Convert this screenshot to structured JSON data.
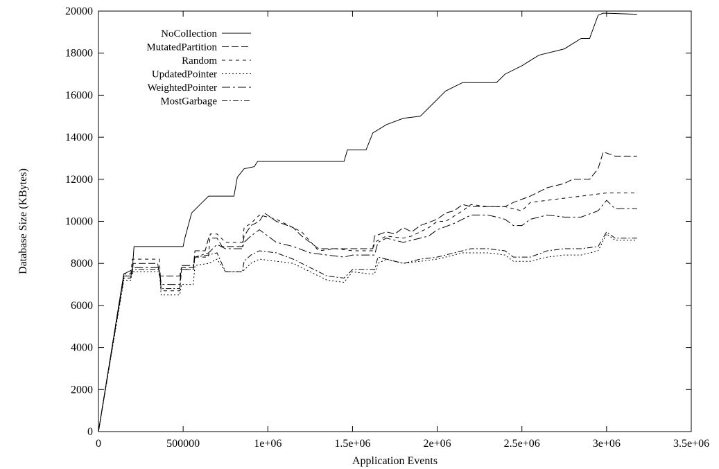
{
  "chart_data": {
    "type": "line",
    "title": "",
    "xlabel": "Application Events",
    "ylabel": "Database Size (KBytes)",
    "xlim": [
      0,
      3500000
    ],
    "ylim": [
      0,
      20000
    ],
    "xticks": [
      0,
      500000,
      1000000,
      1500000,
      2000000,
      2500000,
      3000000,
      3500000
    ],
    "xtick_labels": [
      "0",
      "500000",
      "1e+06",
      "1.5e+06",
      "2e+06",
      "2.5e+06",
      "3e+06",
      "3.5e+06"
    ],
    "yticks": [
      0,
      2000,
      4000,
      6000,
      8000,
      10000,
      12000,
      14000,
      16000,
      18000,
      20000
    ],
    "ytick_labels": [
      "0",
      "2000",
      "4000",
      "6000",
      "8000",
      "10000",
      "12000",
      "14000",
      "16000",
      "18000",
      "20000"
    ],
    "grid": false,
    "legend_position": "top-left",
    "series": [
      {
        "name": "NoCollection",
        "dash": "",
        "points": [
          [
            0,
            0
          ],
          [
            150000,
            7500
          ],
          [
            200000,
            7700
          ],
          [
            210000,
            8800
          ],
          [
            500000,
            8800
          ],
          [
            510000,
            9200
          ],
          [
            550000,
            10400
          ],
          [
            600000,
            10800
          ],
          [
            650000,
            11200
          ],
          [
            800000,
            11200
          ],
          [
            820000,
            12100
          ],
          [
            860000,
            12500
          ],
          [
            920000,
            12600
          ],
          [
            940000,
            12850
          ],
          [
            1000000,
            12850
          ],
          [
            1450000,
            12850
          ],
          [
            1470000,
            13400
          ],
          [
            1520000,
            13400
          ],
          [
            1580000,
            13400
          ],
          [
            1620000,
            14200
          ],
          [
            1700000,
            14600
          ],
          [
            1800000,
            14900
          ],
          [
            1900000,
            15000
          ],
          [
            1950000,
            15400
          ],
          [
            2000000,
            15800
          ],
          [
            2050000,
            16200
          ],
          [
            2150000,
            16600
          ],
          [
            2350000,
            16600
          ],
          [
            2400000,
            17000
          ],
          [
            2500000,
            17400
          ],
          [
            2600000,
            17900
          ],
          [
            2750000,
            18200
          ],
          [
            2850000,
            18700
          ],
          [
            2900000,
            18700
          ],
          [
            2950000,
            19800
          ],
          [
            2980000,
            19900
          ],
          [
            3180000,
            19850
          ]
        ]
      },
      {
        "name": "MutatedPartition",
        "dash": "10,4",
        "points": [
          [
            0,
            0
          ],
          [
            150000,
            7500
          ],
          [
            200000,
            7500
          ],
          [
            205000,
            8000
          ],
          [
            350000,
            8000
          ],
          [
            360000,
            7400
          ],
          [
            480000,
            7400
          ],
          [
            490000,
            7800
          ],
          [
            560000,
            7800
          ],
          [
            570000,
            8600
          ],
          [
            630000,
            8600
          ],
          [
            650000,
            9200
          ],
          [
            700000,
            9200
          ],
          [
            730000,
            8800
          ],
          [
            850000,
            8800
          ],
          [
            860000,
            9300
          ],
          [
            900000,
            9800
          ],
          [
            950000,
            10000
          ],
          [
            980000,
            10400
          ],
          [
            1050000,
            10000
          ],
          [
            1150000,
            9700
          ],
          [
            1200000,
            9300
          ],
          [
            1300000,
            8700
          ],
          [
            1400000,
            8700
          ],
          [
            1500000,
            8700
          ],
          [
            1620000,
            8700
          ],
          [
            1630000,
            9300
          ],
          [
            1700000,
            9500
          ],
          [
            1750000,
            9400
          ],
          [
            1800000,
            9700
          ],
          [
            1850000,
            9500
          ],
          [
            1900000,
            9800
          ],
          [
            2000000,
            10100
          ],
          [
            2050000,
            10400
          ],
          [
            2100000,
            10500
          ],
          [
            2150000,
            10800
          ],
          [
            2200000,
            10700
          ],
          [
            2300000,
            10700
          ],
          [
            2400000,
            10700
          ],
          [
            2450000,
            10900
          ],
          [
            2550000,
            11200
          ],
          [
            2650000,
            11600
          ],
          [
            2750000,
            11800
          ],
          [
            2800000,
            12000
          ],
          [
            2900000,
            12000
          ],
          [
            2950000,
            12500
          ],
          [
            2980000,
            13300
          ],
          [
            3050000,
            13100
          ],
          [
            3180000,
            13100
          ]
        ]
      },
      {
        "name": "Random",
        "dash": "5,5",
        "points": [
          [
            0,
            0
          ],
          [
            150000,
            7400
          ],
          [
            190000,
            7400
          ],
          [
            200000,
            8200
          ],
          [
            360000,
            8200
          ],
          [
            370000,
            6700
          ],
          [
            480000,
            6700
          ],
          [
            490000,
            7700
          ],
          [
            560000,
            7700
          ],
          [
            570000,
            8300
          ],
          [
            650000,
            8300
          ],
          [
            660000,
            9400
          ],
          [
            700000,
            9400
          ],
          [
            750000,
            9000
          ],
          [
            850000,
            9000
          ],
          [
            860000,
            9700
          ],
          [
            900000,
            9900
          ],
          [
            950000,
            10300
          ],
          [
            1050000,
            10100
          ],
          [
            1200000,
            9500
          ],
          [
            1300000,
            8600
          ],
          [
            1400000,
            8700
          ],
          [
            1500000,
            8600
          ],
          [
            1620000,
            8600
          ],
          [
            1630000,
            9000
          ],
          [
            1700000,
            9300
          ],
          [
            1800000,
            9200
          ],
          [
            1850000,
            9300
          ],
          [
            1950000,
            9700
          ],
          [
            2000000,
            10000
          ],
          [
            2050000,
            10000
          ],
          [
            2150000,
            10500
          ],
          [
            2200000,
            10800
          ],
          [
            2300000,
            10700
          ],
          [
            2400000,
            10700
          ],
          [
            2500000,
            10500
          ],
          [
            2550000,
            10900
          ],
          [
            2650000,
            11000
          ],
          [
            2750000,
            11100
          ],
          [
            2850000,
            11200
          ],
          [
            2950000,
            11300
          ],
          [
            3000000,
            11350
          ],
          [
            3180000,
            11350
          ]
        ]
      },
      {
        "name": "UpdatedPointer",
        "dash": "2,3",
        "points": [
          [
            0,
            0
          ],
          [
            150000,
            7200
          ],
          [
            190000,
            7200
          ],
          [
            200000,
            7600
          ],
          [
            360000,
            7600
          ],
          [
            370000,
            6500
          ],
          [
            480000,
            6500
          ],
          [
            490000,
            7000
          ],
          [
            560000,
            7000
          ],
          [
            570000,
            7900
          ],
          [
            650000,
            8000
          ],
          [
            700000,
            8200
          ],
          [
            750000,
            7600
          ],
          [
            850000,
            7600
          ],
          [
            900000,
            8000
          ],
          [
            950000,
            8200
          ],
          [
            1050000,
            8100
          ],
          [
            1150000,
            8000
          ],
          [
            1250000,
            7600
          ],
          [
            1350000,
            7200
          ],
          [
            1450000,
            7100
          ],
          [
            1500000,
            7600
          ],
          [
            1600000,
            7500
          ],
          [
            1630000,
            7500
          ],
          [
            1650000,
            8000
          ],
          [
            1700000,
            8200
          ],
          [
            1800000,
            8000
          ],
          [
            1900000,
            8100
          ],
          [
            2000000,
            8200
          ],
          [
            2050000,
            8300
          ],
          [
            2150000,
            8500
          ],
          [
            2300000,
            8500
          ],
          [
            2400000,
            8400
          ],
          [
            2450000,
            8100
          ],
          [
            2550000,
            8100
          ],
          [
            2650000,
            8300
          ],
          [
            2750000,
            8400
          ],
          [
            2850000,
            8400
          ],
          [
            2950000,
            8600
          ],
          [
            3000000,
            9400
          ],
          [
            3050000,
            9100
          ],
          [
            3180000,
            9100
          ]
        ]
      },
      {
        "name": "WeightedPointer",
        "dash": "12,4,3,4",
        "points": [
          [
            0,
            0
          ],
          [
            150000,
            7300
          ],
          [
            190000,
            7300
          ],
          [
            200000,
            7800
          ],
          [
            360000,
            7800
          ],
          [
            370000,
            7000
          ],
          [
            480000,
            7000
          ],
          [
            490000,
            7900
          ],
          [
            560000,
            7900
          ],
          [
            570000,
            8300
          ],
          [
            650000,
            8500
          ],
          [
            700000,
            8900
          ],
          [
            750000,
            8700
          ],
          [
            850000,
            8700
          ],
          [
            860000,
            9000
          ],
          [
            900000,
            9300
          ],
          [
            950000,
            9600
          ],
          [
            1050000,
            9000
          ],
          [
            1150000,
            8800
          ],
          [
            1250000,
            8500
          ],
          [
            1350000,
            8400
          ],
          [
            1450000,
            8300
          ],
          [
            1500000,
            8400
          ],
          [
            1630000,
            8400
          ],
          [
            1650000,
            9000
          ],
          [
            1700000,
            9200
          ],
          [
            1800000,
            9000
          ],
          [
            1850000,
            9100
          ],
          [
            1950000,
            9300
          ],
          [
            2000000,
            9600
          ],
          [
            2100000,
            9900
          ],
          [
            2200000,
            10300
          ],
          [
            2300000,
            10300
          ],
          [
            2400000,
            10100
          ],
          [
            2450000,
            9800
          ],
          [
            2500000,
            9800
          ],
          [
            2550000,
            10100
          ],
          [
            2650000,
            10300
          ],
          [
            2750000,
            10200
          ],
          [
            2850000,
            10200
          ],
          [
            2950000,
            10500
          ],
          [
            3000000,
            11000
          ],
          [
            3050000,
            10600
          ],
          [
            3180000,
            10600
          ]
        ]
      },
      {
        "name": "MostGarbage",
        "dash": "8,3,2,3",
        "points": [
          [
            0,
            0
          ],
          [
            150000,
            7400
          ],
          [
            190000,
            7400
          ],
          [
            200000,
            7700
          ],
          [
            360000,
            7700
          ],
          [
            370000,
            6800
          ],
          [
            480000,
            6800
          ],
          [
            490000,
            7700
          ],
          [
            560000,
            7700
          ],
          [
            570000,
            8300
          ],
          [
            650000,
            8400
          ],
          [
            700000,
            8500
          ],
          [
            750000,
            7600
          ],
          [
            850000,
            7600
          ],
          [
            860000,
            8100
          ],
          [
            900000,
            8400
          ],
          [
            950000,
            8600
          ],
          [
            1050000,
            8500
          ],
          [
            1150000,
            8200
          ],
          [
            1250000,
            7800
          ],
          [
            1350000,
            7400
          ],
          [
            1450000,
            7300
          ],
          [
            1500000,
            7700
          ],
          [
            1630000,
            7700
          ],
          [
            1650000,
            8300
          ],
          [
            1700000,
            8200
          ],
          [
            1800000,
            8000
          ],
          [
            1900000,
            8200
          ],
          [
            2000000,
            8300
          ],
          [
            2100000,
            8500
          ],
          [
            2200000,
            8700
          ],
          [
            2300000,
            8700
          ],
          [
            2400000,
            8600
          ],
          [
            2450000,
            8300
          ],
          [
            2550000,
            8300
          ],
          [
            2650000,
            8600
          ],
          [
            2750000,
            8700
          ],
          [
            2850000,
            8700
          ],
          [
            2950000,
            8800
          ],
          [
            3000000,
            9500
          ],
          [
            3050000,
            9200
          ],
          [
            3180000,
            9200
          ]
        ]
      }
    ]
  }
}
